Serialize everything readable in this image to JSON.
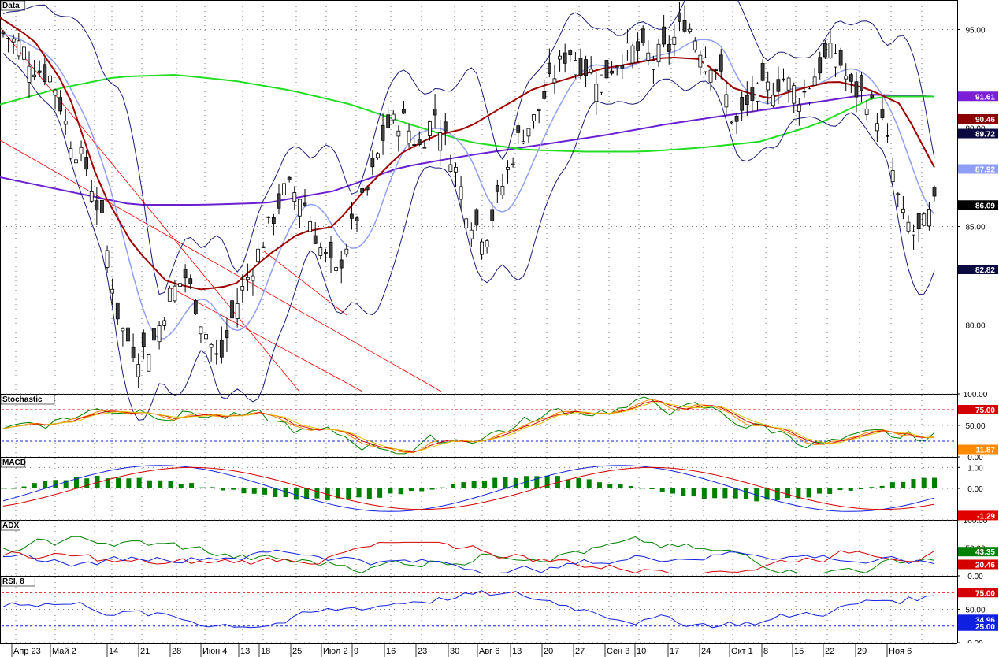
{
  "chart_data": [
    {
      "type": "candlestick",
      "panel": "Data",
      "title": "Data",
      "ylim": [
        76.5,
        96.5
      ],
      "y_ticks": [
        "80.00",
        "85.00",
        "90.00",
        "95.00"
      ],
      "x_labels": [
        "Апр 23",
        "Май 2",
        "14",
        "21",
        "28",
        "Июн 4",
        "13",
        "18",
        "25",
        "Июл 2",
        "9",
        "16",
        "23",
        "30",
        "Авг 6",
        "13",
        "20",
        "27",
        "Сен 3",
        "10",
        "17",
        "24",
        "Окт 1",
        "8",
        "15",
        "22",
        "29",
        "Ноя 6"
      ],
      "series": [
        {
          "name": "Close",
          "close_path": [
            94.8,
            94.2,
            93.0,
            92.5,
            89.5,
            88.0,
            85.0,
            80.0,
            78.5,
            79.0,
            81.5,
            82.5,
            80.0,
            78.0,
            81.0,
            83.0,
            85.0,
            87.0,
            86.5,
            84.0,
            82.5,
            85.0,
            87.0,
            90.0,
            90.5,
            89.0,
            90.8,
            88.5,
            85.5,
            84.5,
            87.0,
            89.5,
            90.5,
            92.5,
            94.0,
            93.0,
            92.5,
            93.5,
            94.0,
            93.5,
            94.0,
            95.5,
            94.0,
            93.0,
            90.0,
            91.5,
            92.0,
            92.5,
            91.5,
            93.0,
            94.0,
            92.0,
            91.5,
            90.0,
            85.5,
            84.5,
            86.0
          ]
        },
        {
          "name": "MA fast",
          "values": [
            95.6,
            94.5,
            92.0,
            87.0,
            84.0,
            82.2,
            81.8,
            82.0,
            83.5,
            84.7,
            85.0,
            87.0,
            88.7,
            89.6,
            90.0,
            91.0,
            92.0,
            92.5,
            93.0,
            93.3,
            93.6,
            93.5,
            92.0,
            91.5,
            92.0,
            92.4,
            92.0,
            91.2,
            88.0
          ]
        },
        {
          "name": "MA green",
          "values": [
            91.2,
            92.0,
            92.6,
            92.7,
            92.4,
            91.9,
            91.2,
            90.2,
            89.3,
            88.9,
            88.8,
            88.8,
            89.0,
            89.3,
            90.2,
            91.6,
            91.6
          ]
        },
        {
          "name": "MA purple",
          "values": [
            87.5,
            86.8,
            86.1,
            86.1,
            86.2,
            86.8,
            88.0,
            88.6,
            89.1,
            89.6,
            90.2,
            90.7,
            91.2,
            91.7,
            91.6
          ]
        },
        {
          "name": "BB",
          "values": [
            87.9
          ]
        }
      ],
      "price_labels": [
        {
          "value": "91.61",
          "bg": "#7a1fd6",
          "fg": "#ffffff"
        },
        {
          "value": "90.46",
          "bg": "#8b0000",
          "fg": "#ffffff"
        },
        {
          "value": "89.72",
          "bg": "#0a0a40",
          "fg": "#ffffff"
        },
        {
          "value": "87.92",
          "bg": "#8f9ef5",
          "fg": "#ffffff"
        },
        {
          "value": "86.09",
          "bg": "#000000",
          "fg": "#ffffff"
        },
        {
          "value": "82.82",
          "bg": "#0a0a40",
          "fg": "#ffffff"
        }
      ]
    },
    {
      "type": "line",
      "panel": "Stochastic",
      "title": "Stochastic",
      "ylim": [
        0,
        100
      ],
      "y_ticks": [
        "100.00",
        "75.00",
        "50.00",
        "0.00"
      ],
      "levels": [
        75,
        25
      ],
      "value_labels": [
        {
          "value": "75.00",
          "bg": "#d40000",
          "fg": "#ffffff"
        },
        {
          "value": "11.87",
          "bg": "#ff8a00",
          "fg": "#ffffff"
        }
      ]
    },
    {
      "type": "bar",
      "panel": "MACD",
      "title": "MACD",
      "ylim": [
        -1.5,
        1.5
      ],
      "y_ticks": [
        "1.00",
        "0.00"
      ],
      "value_labels": [
        {
          "value": "-1.29",
          "bg": "#e00000",
          "fg": "#ffffff"
        }
      ]
    },
    {
      "type": "line",
      "panel": "ADX",
      "title": "ADX",
      "ylim": [
        0,
        100
      ],
      "y_ticks": [
        "100.00",
        "50.00",
        "0.00"
      ],
      "value_labels": [
        {
          "value": "43.35",
          "bg": "#008000",
          "fg": "#ffffff"
        },
        {
          "value": "20.46",
          "bg": "#d40000",
          "fg": "#ffffff"
        }
      ]
    },
    {
      "type": "line",
      "panel": "RSI, 8",
      "title": "RSI, 8",
      "ylim": [
        0,
        100
      ],
      "y_ticks": [
        "50.00",
        "0.00"
      ],
      "levels": [
        75,
        25
      ],
      "value_labels": [
        {
          "value": "75.00",
          "bg": "#d40000",
          "fg": "#ffffff"
        },
        {
          "value": "34.96",
          "bg": "#1020e0",
          "fg": "#ffffff"
        },
        {
          "value": "25.00",
          "bg": "#1020e0",
          "fg": "#ffffff"
        }
      ]
    }
  ],
  "colors": {
    "bull": "#ffffff",
    "bear": "#404040",
    "ma_fast": "#a00000",
    "ma_green": "#22dd22",
    "ma_purple": "#6a1fd0",
    "bb": "#1a1a7a",
    "bb_mid": "#8f9ef5",
    "trend": "#ff0000",
    "macd_bar": "#008000",
    "grid": "#7a7a7a"
  }
}
